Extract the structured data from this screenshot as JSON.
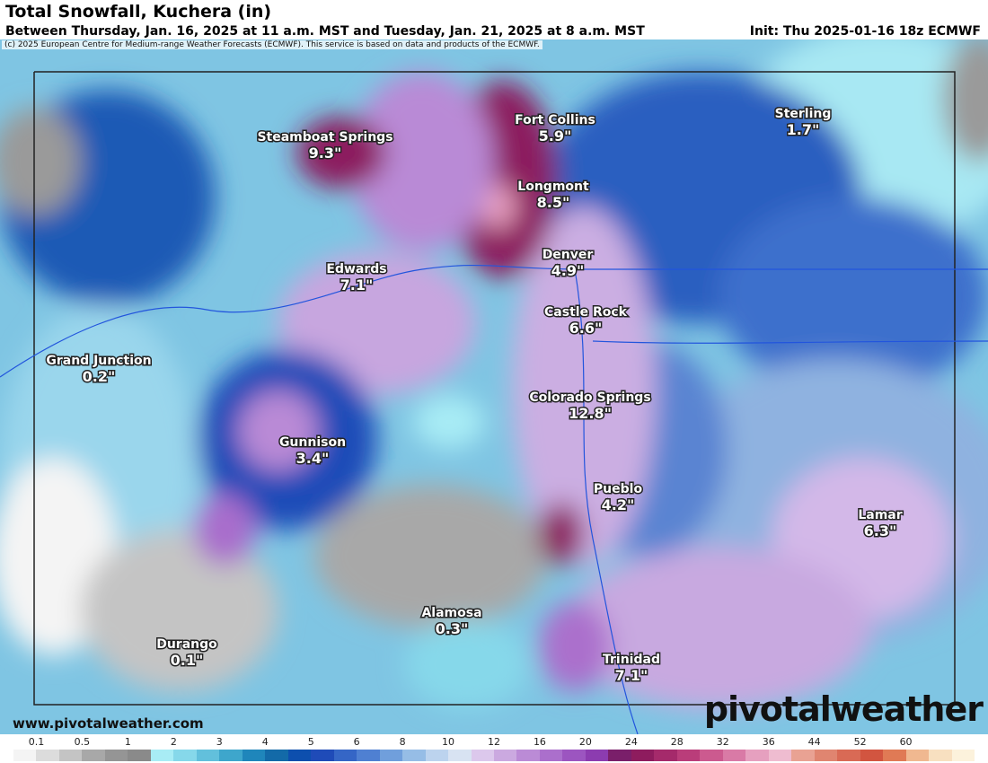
{
  "header": {
    "title": "Total Snowfall, Kuchera (in)",
    "subtitle": "Between Thursday, Jan. 16, 2025 at 11 a.m. MST and Tuesday, Jan. 21, 2025 at 8 a.m. MST",
    "init": "Init: Thu 2025-01-16 18z ECMWF",
    "credit": "(c) 2025 European Centre for Medium-range Weather Forecasts (ECMWF). This service is based on data and products of the ECMWF."
  },
  "cities": [
    {
      "name": "Steamboat Springs",
      "value": "9.3\""
    },
    {
      "name": "Fort Collins",
      "value": "5.9\""
    },
    {
      "name": "Sterling",
      "value": "1.7\""
    },
    {
      "name": "Longmont",
      "value": "8.5\""
    },
    {
      "name": "Denver",
      "value": "4.9\""
    },
    {
      "name": "Edwards",
      "value": "7.1\""
    },
    {
      "name": "Castle Rock",
      "value": "6.6\""
    },
    {
      "name": "Grand Junction",
      "value": "0.2\""
    },
    {
      "name": "Colorado Springs",
      "value": "12.8\""
    },
    {
      "name": "Gunnison",
      "value": "3.4\""
    },
    {
      "name": "Pueblo",
      "value": "4.2\""
    },
    {
      "name": "Lamar",
      "value": "6.3\""
    },
    {
      "name": "Alamosa",
      "value": "0.3\""
    },
    {
      "name": "Durango",
      "value": "0.1\""
    },
    {
      "name": "Trinidad",
      "value": "7.1\""
    }
  ],
  "footer": {
    "website": "www.pivotalweather.com",
    "logo": "pivotalweather"
  },
  "legend": {
    "ticks": [
      "0.1",
      "0.5",
      "1",
      "2",
      "3",
      "4",
      "5",
      "6",
      "8",
      "10",
      "12",
      "16",
      "20",
      "24",
      "28",
      "32",
      "36",
      "44",
      "52",
      "60"
    ],
    "colors": [
      "#f4f4f4",
      "#dcdcdc",
      "#c4c4c4",
      "#a8a8a8",
      "#959595",
      "#8a8a8a",
      "#a8ecf5",
      "#86d8ea",
      "#62c0dc",
      "#3ea6cc",
      "#1f86bb",
      "#136aa8",
      "#0d4fae",
      "#1f4bb8",
      "#3566c6",
      "#4f80d2",
      "#709fdc",
      "#96bde6",
      "#bcd3ee",
      "#d8e3f2",
      "#dcc8ec",
      "#cba9e0",
      "#bb8bd6",
      "#ab6fcc",
      "#9c55c0",
      "#8c3cb0",
      "#7a1f6a",
      "#8e1c5e",
      "#a52a6b",
      "#ba3d7a",
      "#cc5a8f",
      "#d97aa6",
      "#e6a0bf",
      "#efbcd0",
      "#e9a293",
      "#e08570",
      "#d96a55",
      "#d25540",
      "#e07a55",
      "#f0b890",
      "#f8e0c0",
      "#fcf2dc"
    ]
  }
}
